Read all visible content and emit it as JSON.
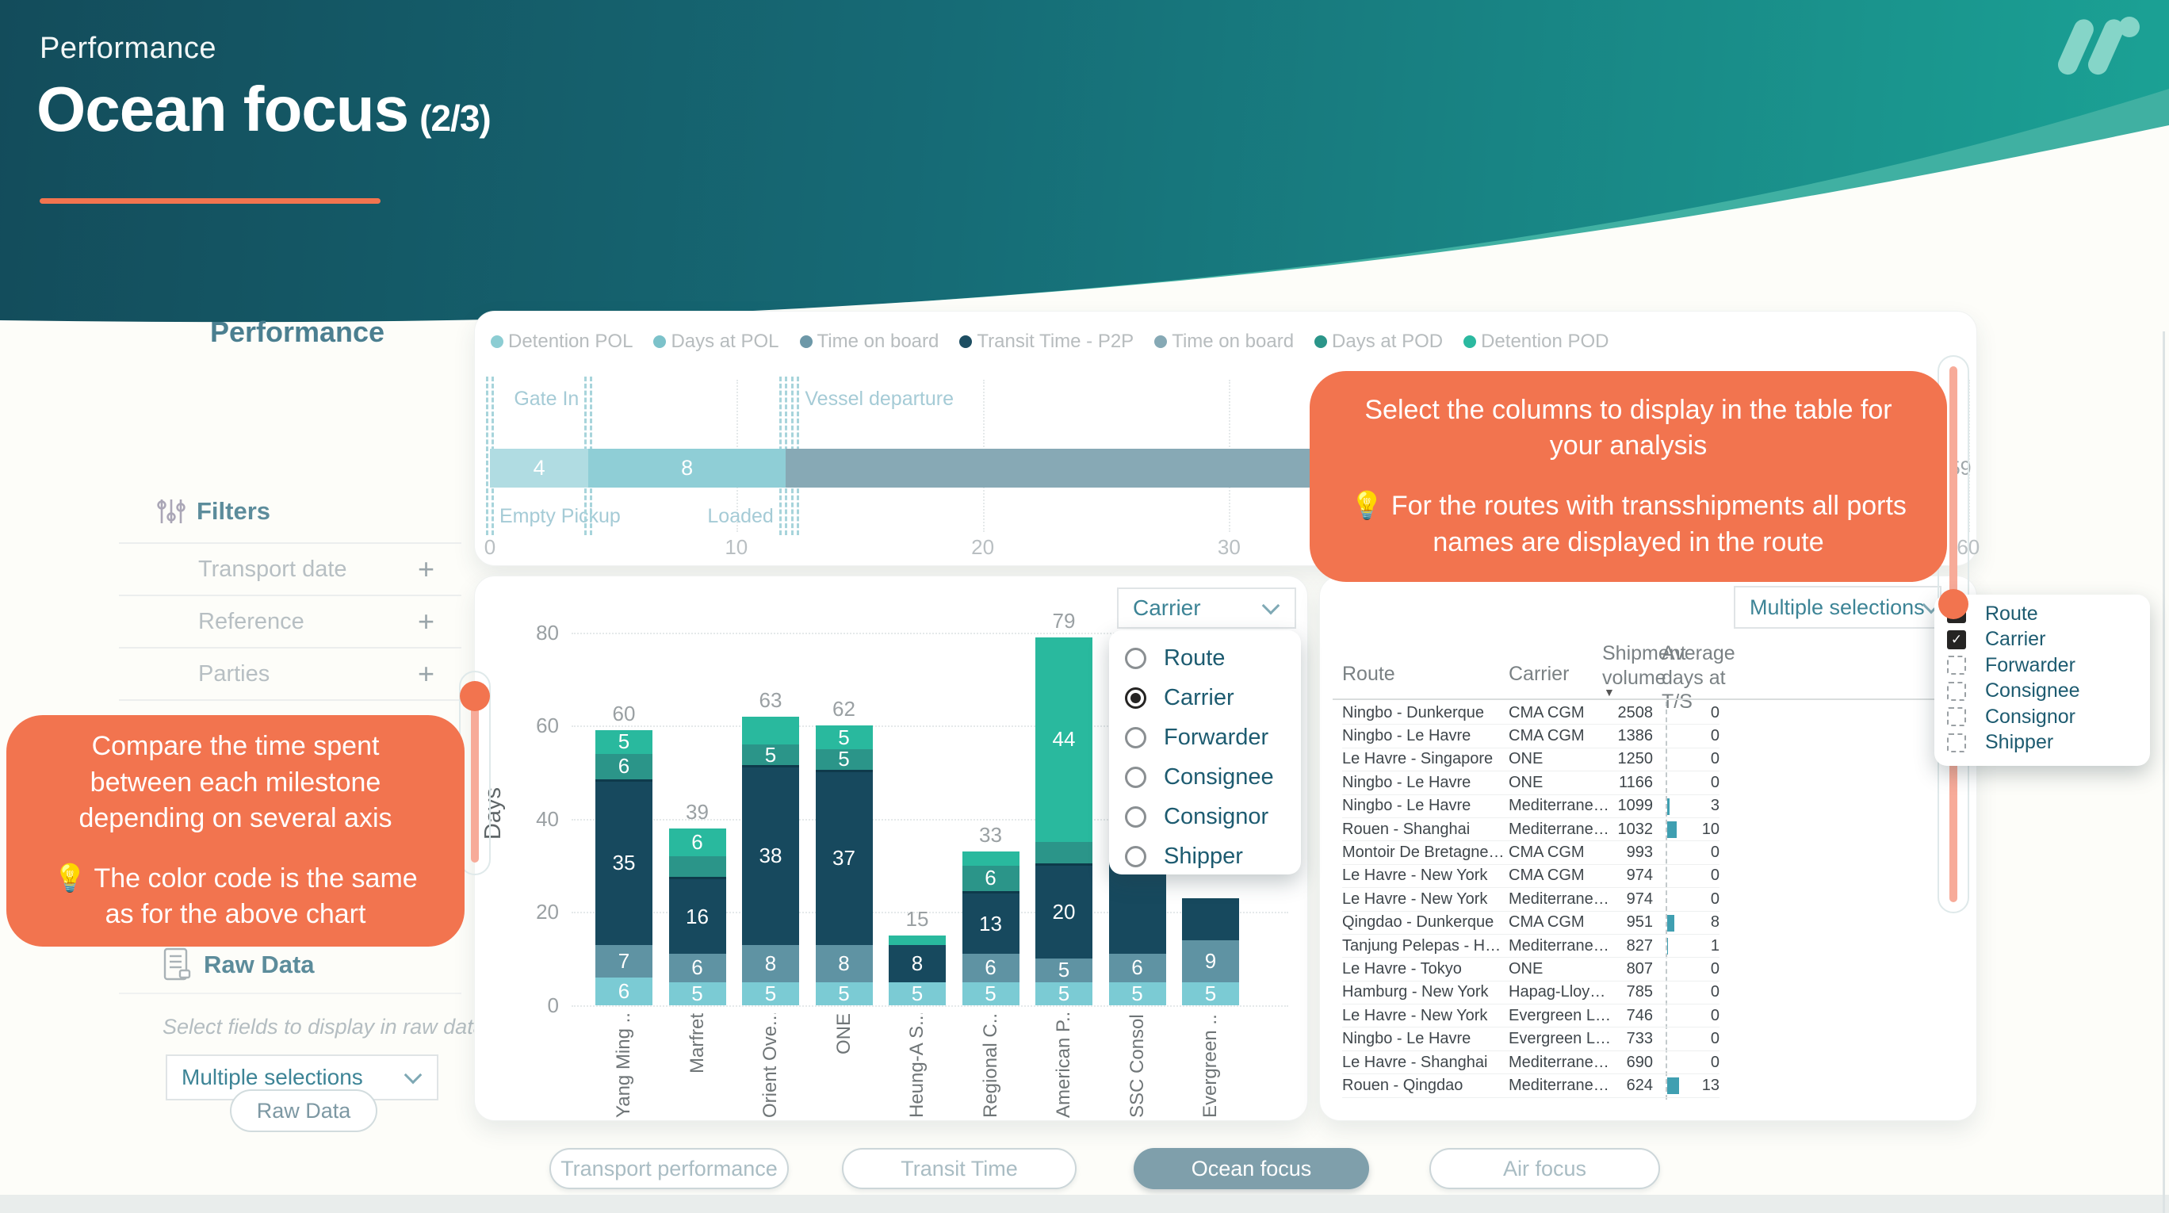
{
  "header": {
    "eyebrow": "Performance",
    "title": "Ocean focus",
    "pager": "(2/3)"
  },
  "sidebar": {
    "title": "Performance",
    "filters_label": "Filters",
    "filter_groups": [
      {
        "label": "Transport date",
        "expand_icon": "+"
      },
      {
        "label": "Reference",
        "expand_icon": "+"
      },
      {
        "label": "Parties",
        "expand_icon": "+"
      }
    ],
    "raw_data_label": "Raw Data",
    "select_fields_hint": "Select fields to display in raw data",
    "fields_dropdown_value": "Multiple selections",
    "raw_data_button": "Raw Data"
  },
  "callout_left": {
    "line1": "Compare the time spent between each milestone depending on several axis",
    "line2": "💡 The color code is the same as for the above chart"
  },
  "callout_right": {
    "line1": "Select the columns to display in the table for your analysis",
    "line2": "💡 For the routes with transshipments all ports names are displayed in the route"
  },
  "milestone_chart": {
    "type": "stacked-horizontal-bar",
    "legend": [
      {
        "label": "Detention POL",
        "color": "#8ccdd3"
      },
      {
        "label": "Days at POL",
        "color": "#7cc2ca"
      },
      {
        "label": "Time on board",
        "color": "#6d98a8"
      },
      {
        "label": "Transit Time - P2P",
        "color": "#1d4e62"
      },
      {
        "label": "Time on board",
        "color": "#86a9b5"
      },
      {
        "label": "Days at POD",
        "color": "#2b9589"
      },
      {
        "label": "Detention POD",
        "color": "#2bb9a0"
      }
    ],
    "axis": {
      "min": 0,
      "max": 60,
      "ticks": [
        0,
        10,
        20,
        30,
        40,
        50,
        60
      ]
    },
    "milestones": [
      {
        "label": "Empty Pickup",
        "day": 0,
        "position": "below",
        "align": "after"
      },
      {
        "label": "Gate In",
        "day": 4,
        "position": "above",
        "align": "before"
      },
      {
        "label": "Loaded",
        "day": 11.9,
        "position": "below",
        "align": "before"
      },
      {
        "label": "Vessel departure",
        "day": 12.4,
        "position": "above",
        "align": "after"
      }
    ],
    "segments": [
      {
        "value": 4,
        "label": "4",
        "color": "#b0dce2"
      },
      {
        "value": 8,
        "label": "8",
        "color": "#8fced6"
      },
      {
        "value": 34,
        "label": "34",
        "color": "#87a9b5",
        "label_align": "end"
      },
      {
        "value": 1,
        "label": null,
        "color": "#1d4e62"
      },
      {
        "value": 6,
        "label": null,
        "color": "#2b9589"
      },
      {
        "value": 6,
        "label": null,
        "color": "#2bb9a0"
      }
    ],
    "total_label": "59"
  },
  "carrier_chart": {
    "type": "stacked-bar",
    "ylabel": "Days",
    "y_ticks": [
      0,
      20,
      40,
      60,
      80
    ],
    "ylim": [
      0,
      80
    ],
    "group_by_value": "Carrier",
    "group_by_options": [
      {
        "label": "Route",
        "selected": false
      },
      {
        "label": "Carrier",
        "selected": true
      },
      {
        "label": "Forwarder",
        "selected": false
      },
      {
        "label": "Consignee",
        "selected": false
      },
      {
        "label": "Consignor",
        "selected": false
      },
      {
        "label": "Shipper",
        "selected": false
      }
    ],
    "bars": [
      {
        "category": "Yang Ming ...",
        "total": "60",
        "segments": [
          {
            "value": 6,
            "label": "6",
            "color": "#7bcbd4"
          },
          {
            "value": 7,
            "label": "7",
            "color": "#5f93a3"
          },
          {
            "value": 35,
            "label": "35",
            "color": "#17495e"
          },
          {
            "value": 6,
            "label": "6",
            "color": "#2b9589"
          },
          {
            "value": 5,
            "label": "5",
            "color": "#29b99e"
          }
        ]
      },
      {
        "category": "Marfret",
        "total": "39",
        "segments": [
          {
            "value": 5,
            "label": "5",
            "color": "#7bcbd4"
          },
          {
            "value": 6,
            "label": "6",
            "color": "#5f93a3"
          },
          {
            "value": 16,
            "label": "16",
            "color": "#17495e"
          },
          {
            "value": 5,
            "label": null,
            "color": "#2b9589"
          },
          {
            "value": 6,
            "label": "6",
            "color": "#29b99e"
          }
        ]
      },
      {
        "category": "Orient Ove...",
        "total": "63",
        "segments": [
          {
            "value": 5,
            "label": "5",
            "color": "#7bcbd4"
          },
          {
            "value": 8,
            "label": "8",
            "color": "#5f93a3"
          },
          {
            "value": 38,
            "label": "38",
            "color": "#17495e"
          },
          {
            "value": 5,
            "label": "5",
            "color": "#2b9589"
          },
          {
            "value": 6,
            "label": null,
            "color": "#29b99e"
          }
        ]
      },
      {
        "category": "ONE",
        "total": "62",
        "segments": [
          {
            "value": 5,
            "label": "5",
            "color": "#7bcbd4"
          },
          {
            "value": 8,
            "label": "8",
            "color": "#5f93a3"
          },
          {
            "value": 37,
            "label": "37",
            "color": "#17495e"
          },
          {
            "value": 5,
            "label": "5",
            "color": "#2b9589"
          },
          {
            "value": 5,
            "label": "5",
            "color": "#29b99e"
          }
        ]
      },
      {
        "category": "Heung-A S...",
        "total": "15",
        "segments": [
          {
            "value": 5,
            "label": "5",
            "color": "#7bcbd4"
          },
          {
            "value": 8,
            "label": "8",
            "color": "#17495e"
          },
          {
            "value": 2,
            "label": null,
            "color": "#29b99e"
          }
        ]
      },
      {
        "category": "Regional C...",
        "total": "33",
        "segments": [
          {
            "value": 5,
            "label": "5",
            "color": "#7bcbd4"
          },
          {
            "value": 6,
            "label": "6",
            "color": "#5f93a3"
          },
          {
            "value": 13,
            "label": "13",
            "color": "#17495e"
          },
          {
            "value": 6,
            "label": "6",
            "color": "#2b9589"
          },
          {
            "value": 3,
            "label": null,
            "color": "#29b99e"
          }
        ]
      },
      {
        "category": "American P...",
        "total": "79",
        "segments": [
          {
            "value": 5,
            "label": "5",
            "color": "#7bcbd4"
          },
          {
            "value": 5,
            "label": "5",
            "color": "#5f93a3"
          },
          {
            "value": 20,
            "label": "20",
            "color": "#17495e"
          },
          {
            "value": 5,
            "label": null,
            "color": "#2b9589"
          },
          {
            "value": 44,
            "label": "44",
            "color": "#29b99e"
          }
        ]
      },
      {
        "category": "SSC Consol...",
        "total": null,
        "segments": [
          {
            "value": 5,
            "label": "5",
            "color": "#7bcbd4"
          },
          {
            "value": 6,
            "label": "6",
            "color": "#5f93a3"
          },
          {
            "value": 26,
            "label": null,
            "color": "#17495e"
          },
          {
            "value": 4,
            "label": null,
            "color": "#2b9589"
          }
        ]
      },
      {
        "category": "Evergreen ...",
        "total": null,
        "segments": [
          {
            "value": 5,
            "label": "5",
            "color": "#7bcbd4"
          },
          {
            "value": 9,
            "label": "9",
            "color": "#5f93a3"
          },
          {
            "value": 9,
            "label": null,
            "color": "#17495e"
          }
        ]
      }
    ]
  },
  "table": {
    "columns_dropdown": {
      "value": "Multiple selections",
      "options": [
        {
          "label": "Route",
          "checked": true
        },
        {
          "label": "Carrier",
          "checked": true
        },
        {
          "label": "Forwarder",
          "checked": false
        },
        {
          "label": "Consignee",
          "checked": false
        },
        {
          "label": "Consignor",
          "checked": false
        },
        {
          "label": "Shipper",
          "checked": false
        }
      ]
    },
    "headers": [
      "Route",
      "Carrier",
      "Shipment volume",
      "Average days at T/S"
    ],
    "sort_icon": "▼",
    "rows": [
      {
        "route": "Ningbo - Dunkerque",
        "carrier": "CMA CGM",
        "volume": "2508",
        "avg_days": "0",
        "ts": 0
      },
      {
        "route": "Ningbo - Le Havre",
        "carrier": "CMA CGM",
        "volume": "1386",
        "avg_days": "0",
        "ts": 0
      },
      {
        "route": "Le Havre - Singapore",
        "carrier": "ONE",
        "volume": "1250",
        "avg_days": "0",
        "ts": 0
      },
      {
        "route": "Ningbo - Le Havre",
        "carrier": "ONE",
        "volume": "1166",
        "avg_days": "0",
        "ts": 0
      },
      {
        "route": "Ningbo - Le Havre",
        "carrier": "Mediterranean ...",
        "volume": "1099",
        "avg_days": "3",
        "ts": 3
      },
      {
        "route": "Rouen - Shanghai",
        "carrier": "Mediterranean ...",
        "volume": "1032",
        "avg_days": "10",
        "ts": 10
      },
      {
        "route": "Montoir De Bretagne - Pointe-a...",
        "carrier": "CMA CGM",
        "volume": "993",
        "avg_days": "0",
        "ts": 0
      },
      {
        "route": "Le Havre - New York",
        "carrier": "CMA CGM",
        "volume": "974",
        "avg_days": "0",
        "ts": 0
      },
      {
        "route": "Le Havre - New York",
        "carrier": "Mediterranean ...",
        "volume": "974",
        "avg_days": "0",
        "ts": 0
      },
      {
        "route": "Qingdao - Dunkerque",
        "carrier": "CMA CGM",
        "volume": "951",
        "avg_days": "8",
        "ts": 8
      },
      {
        "route": "Tanjung Pelepas - Hamburg",
        "carrier": "Mediterranean ...",
        "volume": "827",
        "avg_days": "1",
        "ts": 1
      },
      {
        "route": "Le Havre - Tokyo",
        "carrier": "ONE",
        "volume": "807",
        "avg_days": "0",
        "ts": 0
      },
      {
        "route": "Hamburg - New York",
        "carrier": "Hapag-Lloyd AG",
        "volume": "785",
        "avg_days": "0",
        "ts": 0
      },
      {
        "route": "Le Havre - New York",
        "carrier": "Evergreen Line",
        "volume": "746",
        "avg_days": "0",
        "ts": 0
      },
      {
        "route": "Ningbo - Le Havre",
        "carrier": "Evergreen Line",
        "volume": "733",
        "avg_days": "0",
        "ts": 0
      },
      {
        "route": "Le Havre - Shanghai",
        "carrier": "Mediterranean ...",
        "volume": "690",
        "avg_days": "0",
        "ts": 0
      },
      {
        "route": "Rouen - Qingdao",
        "carrier": "Mediterranean ...",
        "volume": "624",
        "avg_days": "13",
        "ts": 13
      }
    ]
  },
  "tabs": [
    {
      "label": "Transport performance",
      "active": false
    },
    {
      "label": "Transit Time",
      "active": false
    },
    {
      "label": "Ocean focus",
      "active": true
    },
    {
      "label": "Air focus",
      "active": false
    }
  ],
  "colors": {
    "accent_orange": "#f2744f",
    "slider_fill": "#f7ab99",
    "header_gradient_start": "#134c5b",
    "header_gradient_end": "#1ba295",
    "active_tab": "#7f9fab",
    "ts_bar": "#3f9fb1"
  }
}
